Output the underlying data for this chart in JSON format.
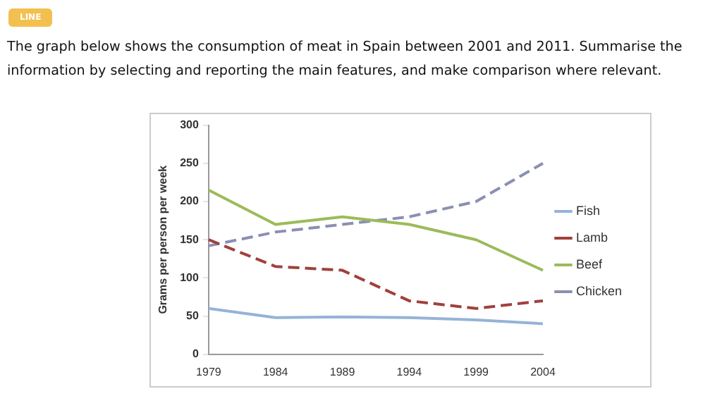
{
  "chart_data": {
    "type": "line",
    "title": "The graph below shows the consumption of meat in Spain between 2001 and 2011. Summarise the information by selecting and reporting the main features, and make comparison where relevant.",
    "annotations": [
      "LINE"
    ],
    "ylabel": "Grams per person per week",
    "categories": [
      "1979",
      "1984",
      "1989",
      "1994",
      "1999",
      "2004"
    ],
    "series": [
      {
        "name": "Fish",
        "color": "#95b3d7",
        "line_style": "solid",
        "values": [
          60,
          48,
          49,
          48,
          45,
          40
        ]
      },
      {
        "name": "Lamb",
        "color": "#a0403d",
        "line_style": "dashed",
        "values": [
          150,
          115,
          110,
          70,
          60,
          70
        ]
      },
      {
        "name": "Beef",
        "color": "#9bbb59",
        "line_style": "solid",
        "values": [
          215,
          170,
          180,
          170,
          150,
          110
        ]
      },
      {
        "name": "Chicken",
        "color": "#8a8fb3",
        "line_style": "dashed",
        "values": [
          142,
          160,
          170,
          180,
          200,
          250
        ]
      }
    ],
    "ylim": [
      0,
      300
    ],
    "yticks": [
      0,
      50,
      100,
      150,
      200,
      250,
      300
    ],
    "grid": false,
    "legend": "right",
    "marker": "none"
  }
}
